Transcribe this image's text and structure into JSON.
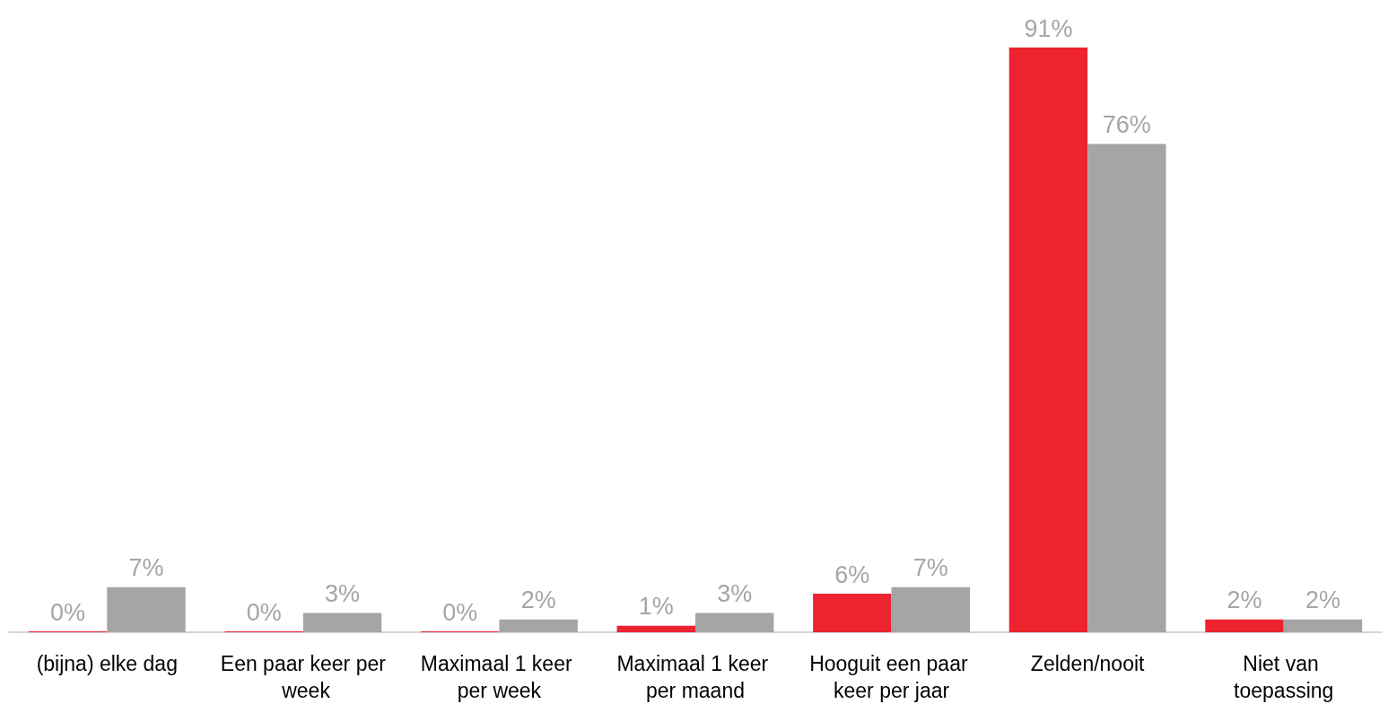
{
  "chart_data": {
    "type": "bar",
    "categories": [
      "(bijna) elke dag",
      "Een paar keer per week",
      "Maximaal 1 keer per week",
      "Maximaal 1 keer per maand",
      "Hooguit een paar keer per jaar",
      "Zelden/nooit",
      "Niet van toepassing"
    ],
    "series": [
      {
        "color": "#ee2330",
        "values": [
          0,
          0,
          0,
          1,
          6,
          91,
          2
        ],
        "value_labels": [
          "0%",
          "0%",
          "0%",
          "1%",
          "6%",
          "91%",
          "2%"
        ]
      },
      {
        "color": "#a5a5a5",
        "values": [
          7,
          3,
          2,
          3,
          7,
          76,
          2
        ],
        "value_labels": [
          "7%",
          "3%",
          "2%",
          "3%",
          "7%",
          "76%",
          "2%"
        ]
      }
    ]
  }
}
